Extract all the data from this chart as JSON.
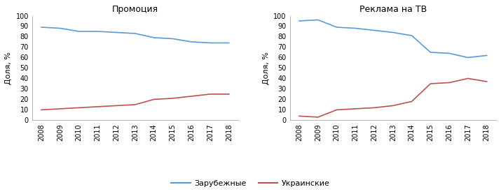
{
  "years": [
    2008,
    2009,
    2010,
    2011,
    2012,
    2013,
    2014,
    2015,
    2016,
    2017,
    2018
  ],
  "promo_foreign": [
    89,
    88,
    85,
    85,
    84,
    83,
    79,
    78,
    75,
    74,
    74
  ],
  "promo_ukrainian": [
    10,
    11,
    12,
    13,
    14,
    15,
    20,
    21,
    23,
    25,
    25
  ],
  "tv_foreign": [
    95,
    96,
    89,
    88,
    86,
    84,
    81,
    65,
    64,
    60,
    62
  ],
  "tv_ukrainian": [
    4,
    3,
    10,
    11,
    12,
    14,
    18,
    35,
    36,
    40,
    37
  ],
  "title_promo": "Промоция",
  "title_tv": "Реклама на ТВ",
  "ylabel": "Доля, %",
  "legend_foreign": "Зарубежные",
  "legend_ukrainian": "Украинские",
  "color_foreign": "#5B9BD5",
  "color_ukrainian": "#C0504D",
  "ylim": [
    0,
    100
  ],
  "yticks": [
    0,
    10,
    20,
    30,
    40,
    50,
    60,
    70,
    80,
    90,
    100
  ]
}
